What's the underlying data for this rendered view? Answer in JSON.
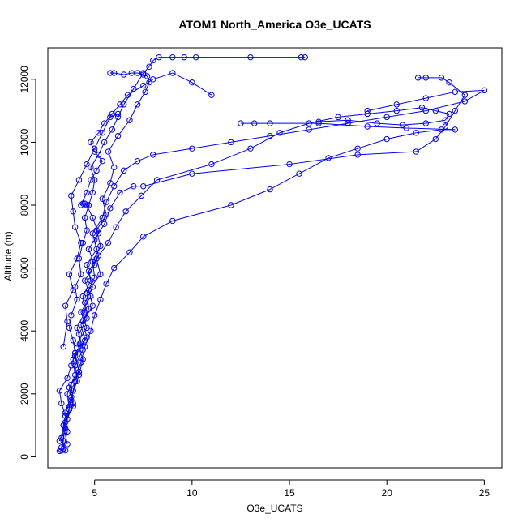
{
  "chart_data": {
    "type": "line",
    "title": "ATOM1 North_America O3e_UCATS",
    "xlabel": "O3e_UCATS",
    "ylabel": "Altitude (m)",
    "xlim": [
      2.6,
      25.9
    ],
    "ylim": [
      -350,
      13000
    ],
    "x_ticks": [
      5,
      10,
      15,
      20,
      25
    ],
    "y_ticks": [
      0,
      2000,
      4000,
      6000,
      8000,
      10000,
      12000
    ],
    "series_color": "#0000ff",
    "markers": "open-circle",
    "grid": false,
    "series": [
      {
        "x": [
          3.2,
          3.3,
          3.4,
          3.4,
          3.5,
          3.3,
          3.2,
          3.6,
          3.8,
          4.0,
          3.9,
          3.7,
          3.8,
          4.1,
          4.0,
          4.3,
          4.2,
          4.4,
          4.6,
          4.5,
          4.7,
          4.9,
          5.0,
          4.8,
          5.2,
          5.5,
          5.9,
          6.2,
          6.5,
          7.0,
          7.5,
          7.8,
          8.0,
          8.3,
          9.0,
          9.6,
          10.2,
          13.0,
          15.6,
          15.8
        ],
        "y": [
          180,
          200,
          500,
          1000,
          1300,
          1700,
          2100,
          2500,
          2900,
          3300,
          3700,
          4100,
          4500,
          5000,
          5400,
          5800,
          6300,
          6800,
          7200,
          7600,
          8000,
          8400,
          8800,
          9200,
          9600,
          10000,
          10400,
          10800,
          11200,
          11700,
          12200,
          12400,
          12600,
          12700,
          12700,
          12700,
          12700,
          12700,
          12700,
          12700
        ]
      },
      {
        "x": [
          3.5,
          3.3,
          3.6,
          3.9,
          3.8,
          4.2,
          4.0,
          4.5,
          4.3,
          4.7,
          4.6,
          5.0,
          4.9,
          5.3,
          5.1,
          5.6,
          5.4,
          5.8,
          6.0,
          5.7,
          6.2,
          6.8,
          7.2,
          7.6,
          7.8,
          7.7,
          7.5,
          7.2,
          6.9,
          6.5,
          6.0,
          5.8
        ],
        "y": [
          200,
          600,
          1200,
          1700,
          2300,
          2700,
          3200,
          3700,
          4200,
          4700,
          5200,
          5700,
          6200,
          6700,
          7200,
          7700,
          8200,
          8700,
          9200,
          9700,
          10200,
          10700,
          11200,
          11600,
          11900,
          12100,
          12150,
          12200,
          12200,
          12150,
          12200,
          12200
        ]
      },
      {
        "x": [
          3.4,
          3.6,
          3.5,
          3.8,
          4.1,
          4.0,
          4.4,
          4.2,
          4.6,
          4.5,
          4.9,
          4.7,
          5.2,
          5.0,
          5.5,
          5.8,
          6.3,
          7.0,
          7.5,
          10.0,
          15.0,
          18.5,
          21.5,
          22.5,
          23.0,
          23.5,
          24.0,
          23.2,
          22.8,
          22.0,
          21.6
        ],
        "y": [
          250,
          800,
          1400,
          1900,
          2400,
          2900,
          3400,
          3900,
          4400,
          4900,
          5400,
          5900,
          6400,
          6900,
          7400,
          7900,
          8400,
          8600,
          8600,
          9000,
          9300,
          9600,
          9700,
          10100,
          10500,
          11000,
          11500,
          11900,
          12050,
          12050,
          12050
        ]
      },
      {
        "x": [
          3.3,
          3.5,
          3.7,
          3.6,
          4.0,
          3.9,
          4.3,
          4.1,
          4.5,
          4.4,
          4.8,
          4.6,
          5.1,
          4.9,
          5.4,
          5.6,
          6.0,
          6.5,
          7.2,
          8.0,
          10.0,
          12.0,
          14.0,
          16.0,
          18.0,
          20.0,
          22.0,
          24.0,
          25.0,
          23.5,
          22.0,
          20.5,
          19.0
        ],
        "y": [
          300,
          900,
          1500,
          2000,
          2600,
          3100,
          3600,
          4100,
          4600,
          5100,
          5600,
          6100,
          6600,
          7100,
          7600,
          8100,
          8600,
          9100,
          9400,
          9600,
          9800,
          10000,
          10200,
          10400,
          10600,
          10800,
          11000,
          11300,
          11650,
          11600,
          11400,
          11200,
          11000
        ]
      },
      {
        "x": [
          3.6,
          3.4,
          3.9,
          3.7,
          4.2,
          4.0,
          4.6,
          4.4,
          4.9,
          4.7,
          5.3,
          5.1,
          5.7,
          6.1,
          6.6,
          7.4,
          8.2,
          11.0,
          13.0,
          14.5,
          16.0,
          17.5,
          19.0,
          20.5,
          21.8,
          22.5,
          23.2,
          23.0,
          22.0,
          20.8,
          19.5,
          18.0,
          16.5
        ],
        "y": [
          400,
          1000,
          1600,
          2200,
          2700,
          3300,
          3800,
          4300,
          4800,
          5300,
          5800,
          6300,
          6800,
          7300,
          7800,
          8300,
          8800,
          9300,
          9800,
          10300,
          10600,
          10800,
          10900,
          11000,
          11100,
          11000,
          10900,
          10700,
          10600,
          10550,
          10600,
          10700,
          10650
        ]
      },
      {
        "x": [
          3.2,
          3.5,
          3.8,
          4.0,
          4.3,
          4.5,
          4.8,
          5.0,
          5.3,
          5.6,
          6.0,
          6.8,
          7.5,
          9.0,
          12.0,
          14.0,
          15.5,
          17.0,
          18.5,
          20.0,
          21.5,
          22.8,
          23.5,
          21.0,
          19.0,
          16.5,
          14.0,
          13.2,
          12.5
        ],
        "y": [
          500,
          1100,
          1800,
          2400,
          3000,
          3500,
          4000,
          4500,
          5000,
          5500,
          6000,
          6500,
          7000,
          7500,
          8000,
          8500,
          9000,
          9500,
          9800,
          10100,
          10300,
          10400,
          10400,
          10450,
          10500,
          10600,
          10600,
          10600,
          10600
        ]
      },
      {
        "x": [
          3.7,
          3.9,
          4.2,
          4.4,
          4.1,
          4.6,
          4.3,
          4.8,
          4.5,
          5.0,
          4.7,
          5.2,
          4.9,
          4.6,
          4.5,
          4.4,
          4.3,
          4.6,
          4.8,
          5.1,
          5.4,
          5.0,
          4.8,
          5.2,
          5.5,
          5.9,
          6.3,
          6.7,
          7.5,
          8.0,
          9.0,
          10.0,
          11.0
        ],
        "y": [
          1600,
          2100,
          2600,
          3100,
          3600,
          4100,
          4600,
          5100,
          5600,
          6100,
          6600,
          7100,
          7600,
          8000,
          8050,
          8050,
          8000,
          8400,
          8800,
          9100,
          9400,
          9700,
          10000,
          10300,
          10600,
          10900,
          11200,
          11500,
          11800,
          12000,
          12200,
          11900,
          11500
        ]
      },
      {
        "x": [
          3.4,
          3.6,
          3.5,
          3.9,
          3.7,
          4.1,
          4.3,
          4.0,
          3.9,
          3.8,
          4.2,
          4.6,
          5.0,
          5.4,
          5.8,
          6.2
        ],
        "y": [
          3500,
          4300,
          4800,
          5300,
          5800,
          6300,
          6800,
          7300,
          7800,
          8300,
          8800,
          9300,
          9800,
          10300,
          10800,
          10900
        ]
      }
    ]
  }
}
